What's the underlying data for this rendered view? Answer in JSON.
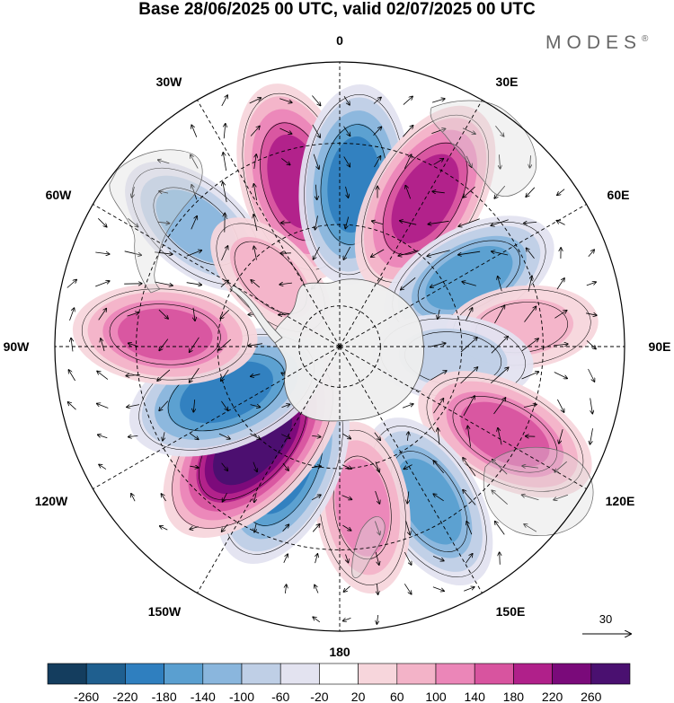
{
  "title": "Base 28/06/2025 00 UTC, valid 02/07/2025 00 UTC",
  "brand": "MODES",
  "brand_mark": "®",
  "meridian_labels": {
    "lon_0": "0",
    "lon_30e": "30E",
    "lon_60e": "60E",
    "lon_90e": "90E",
    "lon_120e": "120E",
    "lon_150e": "150E",
    "lon_180": "180",
    "lon_150w": "150W",
    "lon_120w": "120W",
    "lon_90w": "90W",
    "lon_60w": "60W",
    "lon_30w": "30W"
  },
  "vector_reference": {
    "value": "30"
  },
  "colorbar": {
    "ticks": [
      "-260",
      "-220",
      "-180",
      "-140",
      "-100",
      "-60",
      "-20",
      "20",
      "60",
      "100",
      "140",
      "180",
      "220",
      "260"
    ],
    "colors": [
      "#143d5e",
      "#1f5f8f",
      "#2f7fbf",
      "#5a9fd0",
      "#8ab6dd",
      "#bfcfe6",
      "#e3e3f0",
      "#ffffff",
      "#f7d6dc",
      "#f3b3c8",
      "#eb86b8",
      "#d8549f",
      "#b0208a",
      "#7a0a7a",
      "#4a1070"
    ]
  },
  "anomalies": [
    {
      "lon": 345,
      "lat": -48,
      "value": 190
    },
    {
      "lon": 5,
      "lat": -50,
      "value": -190
    },
    {
      "lon": 30,
      "lat": -48,
      "value": 200
    },
    {
      "lon": 62,
      "lat": -54,
      "value": -150
    },
    {
      "lon": 84,
      "lat": -45,
      "value": 70
    },
    {
      "lon": 96,
      "lat": -62,
      "value": -90
    },
    {
      "lon": 118,
      "lat": -44,
      "value": 160
    },
    {
      "lon": 150,
      "lat": -46,
      "value": -150
    },
    {
      "lon": 172,
      "lat": -50,
      "value": 120
    },
    {
      "lon": 205,
      "lat": -57,
      "value": -200
    },
    {
      "lon": 222,
      "lat": -58,
      "value": 260
    },
    {
      "lon": 248,
      "lat": -60,
      "value": -200
    },
    {
      "lon": 274,
      "lat": -47,
      "value": 150
    },
    {
      "lon": 310,
      "lat": -44,
      "value": -110
    },
    {
      "lon": 315,
      "lat": -66,
      "value": 60
    }
  ]
}
